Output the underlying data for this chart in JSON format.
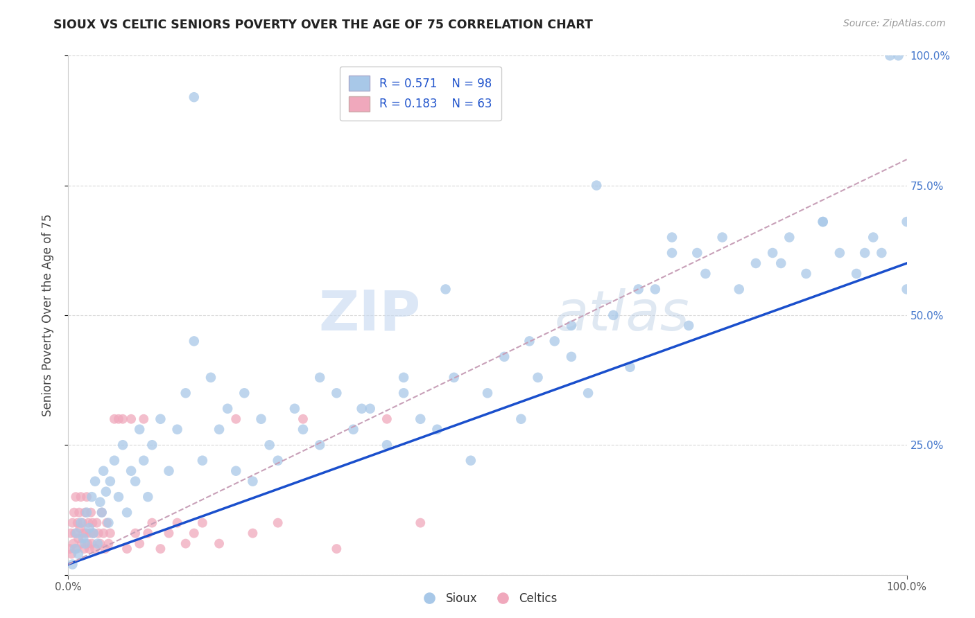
{
  "title": "SIOUX VS CELTIC SENIORS POVERTY OVER THE AGE OF 75 CORRELATION CHART",
  "source": "Source: ZipAtlas.com",
  "ylabel": "Seniors Poverty Over the Age of 75",
  "xlim": [
    0.0,
    1.0
  ],
  "ylim": [
    0.0,
    1.0
  ],
  "r_sioux": 0.571,
  "n_sioux": 98,
  "r_celtics": 0.183,
  "n_celtics": 63,
  "sioux_color": "#a8c8e8",
  "celtics_color": "#f0a8bc",
  "sioux_line_color": "#1a4fcc",
  "celtics_line_color": "#c8a0b8",
  "background_color": "#ffffff",
  "grid_color": "#d0d0d0",
  "watermark_zip": "ZIP",
  "watermark_atlas": "atlas",
  "sioux_x": [
    0.005,
    0.008,
    0.01,
    0.012,
    0.015,
    0.018,
    0.02,
    0.022,
    0.025,
    0.028,
    0.03,
    0.032,
    0.035,
    0.038,
    0.04,
    0.042,
    0.045,
    0.048,
    0.05,
    0.055,
    0.06,
    0.065,
    0.07,
    0.075,
    0.08,
    0.085,
    0.09,
    0.095,
    0.1,
    0.11,
    0.12,
    0.13,
    0.14,
    0.15,
    0.16,
    0.17,
    0.18,
    0.19,
    0.2,
    0.21,
    0.22,
    0.23,
    0.24,
    0.25,
    0.27,
    0.28,
    0.3,
    0.32,
    0.34,
    0.36,
    0.38,
    0.4,
    0.42,
    0.44,
    0.46,
    0.48,
    0.5,
    0.52,
    0.54,
    0.56,
    0.58,
    0.6,
    0.62,
    0.63,
    0.65,
    0.67,
    0.7,
    0.72,
    0.74,
    0.76,
    0.78,
    0.8,
    0.82,
    0.84,
    0.86,
    0.88,
    0.9,
    0.92,
    0.94,
    0.96,
    0.97,
    0.98,
    0.99,
    1.0,
    1.0,
    0.15,
    0.3,
    0.45,
    0.6,
    0.75,
    0.85,
    0.9,
    0.95,
    0.68,
    0.55,
    0.72,
    0.4,
    0.35
  ],
  "sioux_y": [
    0.02,
    0.05,
    0.08,
    0.04,
    0.1,
    0.07,
    0.06,
    0.12,
    0.09,
    0.15,
    0.08,
    0.18,
    0.06,
    0.14,
    0.12,
    0.2,
    0.16,
    0.1,
    0.18,
    0.22,
    0.15,
    0.25,
    0.12,
    0.2,
    0.18,
    0.28,
    0.22,
    0.15,
    0.25,
    0.3,
    0.2,
    0.28,
    0.35,
    0.92,
    0.22,
    0.38,
    0.28,
    0.32,
    0.2,
    0.35,
    0.18,
    0.3,
    0.25,
    0.22,
    0.32,
    0.28,
    0.38,
    0.35,
    0.28,
    0.32,
    0.25,
    0.35,
    0.3,
    0.28,
    0.38,
    0.22,
    0.35,
    0.42,
    0.3,
    0.38,
    0.45,
    0.42,
    0.35,
    0.75,
    0.5,
    0.4,
    0.55,
    0.62,
    0.48,
    0.58,
    0.65,
    0.55,
    0.6,
    0.62,
    0.65,
    0.58,
    0.68,
    0.62,
    0.58,
    0.65,
    0.62,
    1.0,
    1.0,
    0.68,
    0.55,
    0.45,
    0.25,
    0.55,
    0.48,
    0.62,
    0.6,
    0.68,
    0.62,
    0.55,
    0.45,
    0.65,
    0.38,
    0.32
  ],
  "celtics_x": [
    0.002,
    0.003,
    0.004,
    0.005,
    0.006,
    0.007,
    0.008,
    0.009,
    0.01,
    0.011,
    0.012,
    0.013,
    0.014,
    0.015,
    0.016,
    0.017,
    0.018,
    0.019,
    0.02,
    0.021,
    0.022,
    0.023,
    0.024,
    0.025,
    0.026,
    0.027,
    0.028,
    0.029,
    0.03,
    0.032,
    0.034,
    0.036,
    0.038,
    0.04,
    0.042,
    0.044,
    0.046,
    0.048,
    0.05,
    0.055,
    0.06,
    0.065,
    0.07,
    0.075,
    0.08,
    0.085,
    0.09,
    0.095,
    0.1,
    0.11,
    0.12,
    0.13,
    0.14,
    0.15,
    0.16,
    0.18,
    0.2,
    0.22,
    0.25,
    0.28,
    0.32,
    0.38,
    0.42
  ],
  "celtics_y": [
    0.05,
    0.08,
    0.04,
    0.1,
    0.06,
    0.12,
    0.08,
    0.15,
    0.05,
    0.1,
    0.07,
    0.12,
    0.09,
    0.15,
    0.06,
    0.1,
    0.08,
    0.05,
    0.12,
    0.08,
    0.15,
    0.06,
    0.1,
    0.05,
    0.08,
    0.12,
    0.06,
    0.1,
    0.08,
    0.05,
    0.1,
    0.08,
    0.06,
    0.12,
    0.08,
    0.05,
    0.1,
    0.06,
    0.08,
    0.3,
    0.3,
    0.3,
    0.05,
    0.3,
    0.08,
    0.06,
    0.3,
    0.08,
    0.1,
    0.05,
    0.08,
    0.1,
    0.06,
    0.08,
    0.1,
    0.06,
    0.3,
    0.08,
    0.1,
    0.3,
    0.05,
    0.3,
    0.1
  ],
  "sioux_line_x0": 0.0,
  "sioux_line_y0": 0.02,
  "sioux_line_x1": 1.0,
  "sioux_line_y1": 0.6,
  "celtics_line_x0": 0.0,
  "celtics_line_y0": 0.02,
  "celtics_line_x1": 1.0,
  "celtics_line_y1": 0.8
}
